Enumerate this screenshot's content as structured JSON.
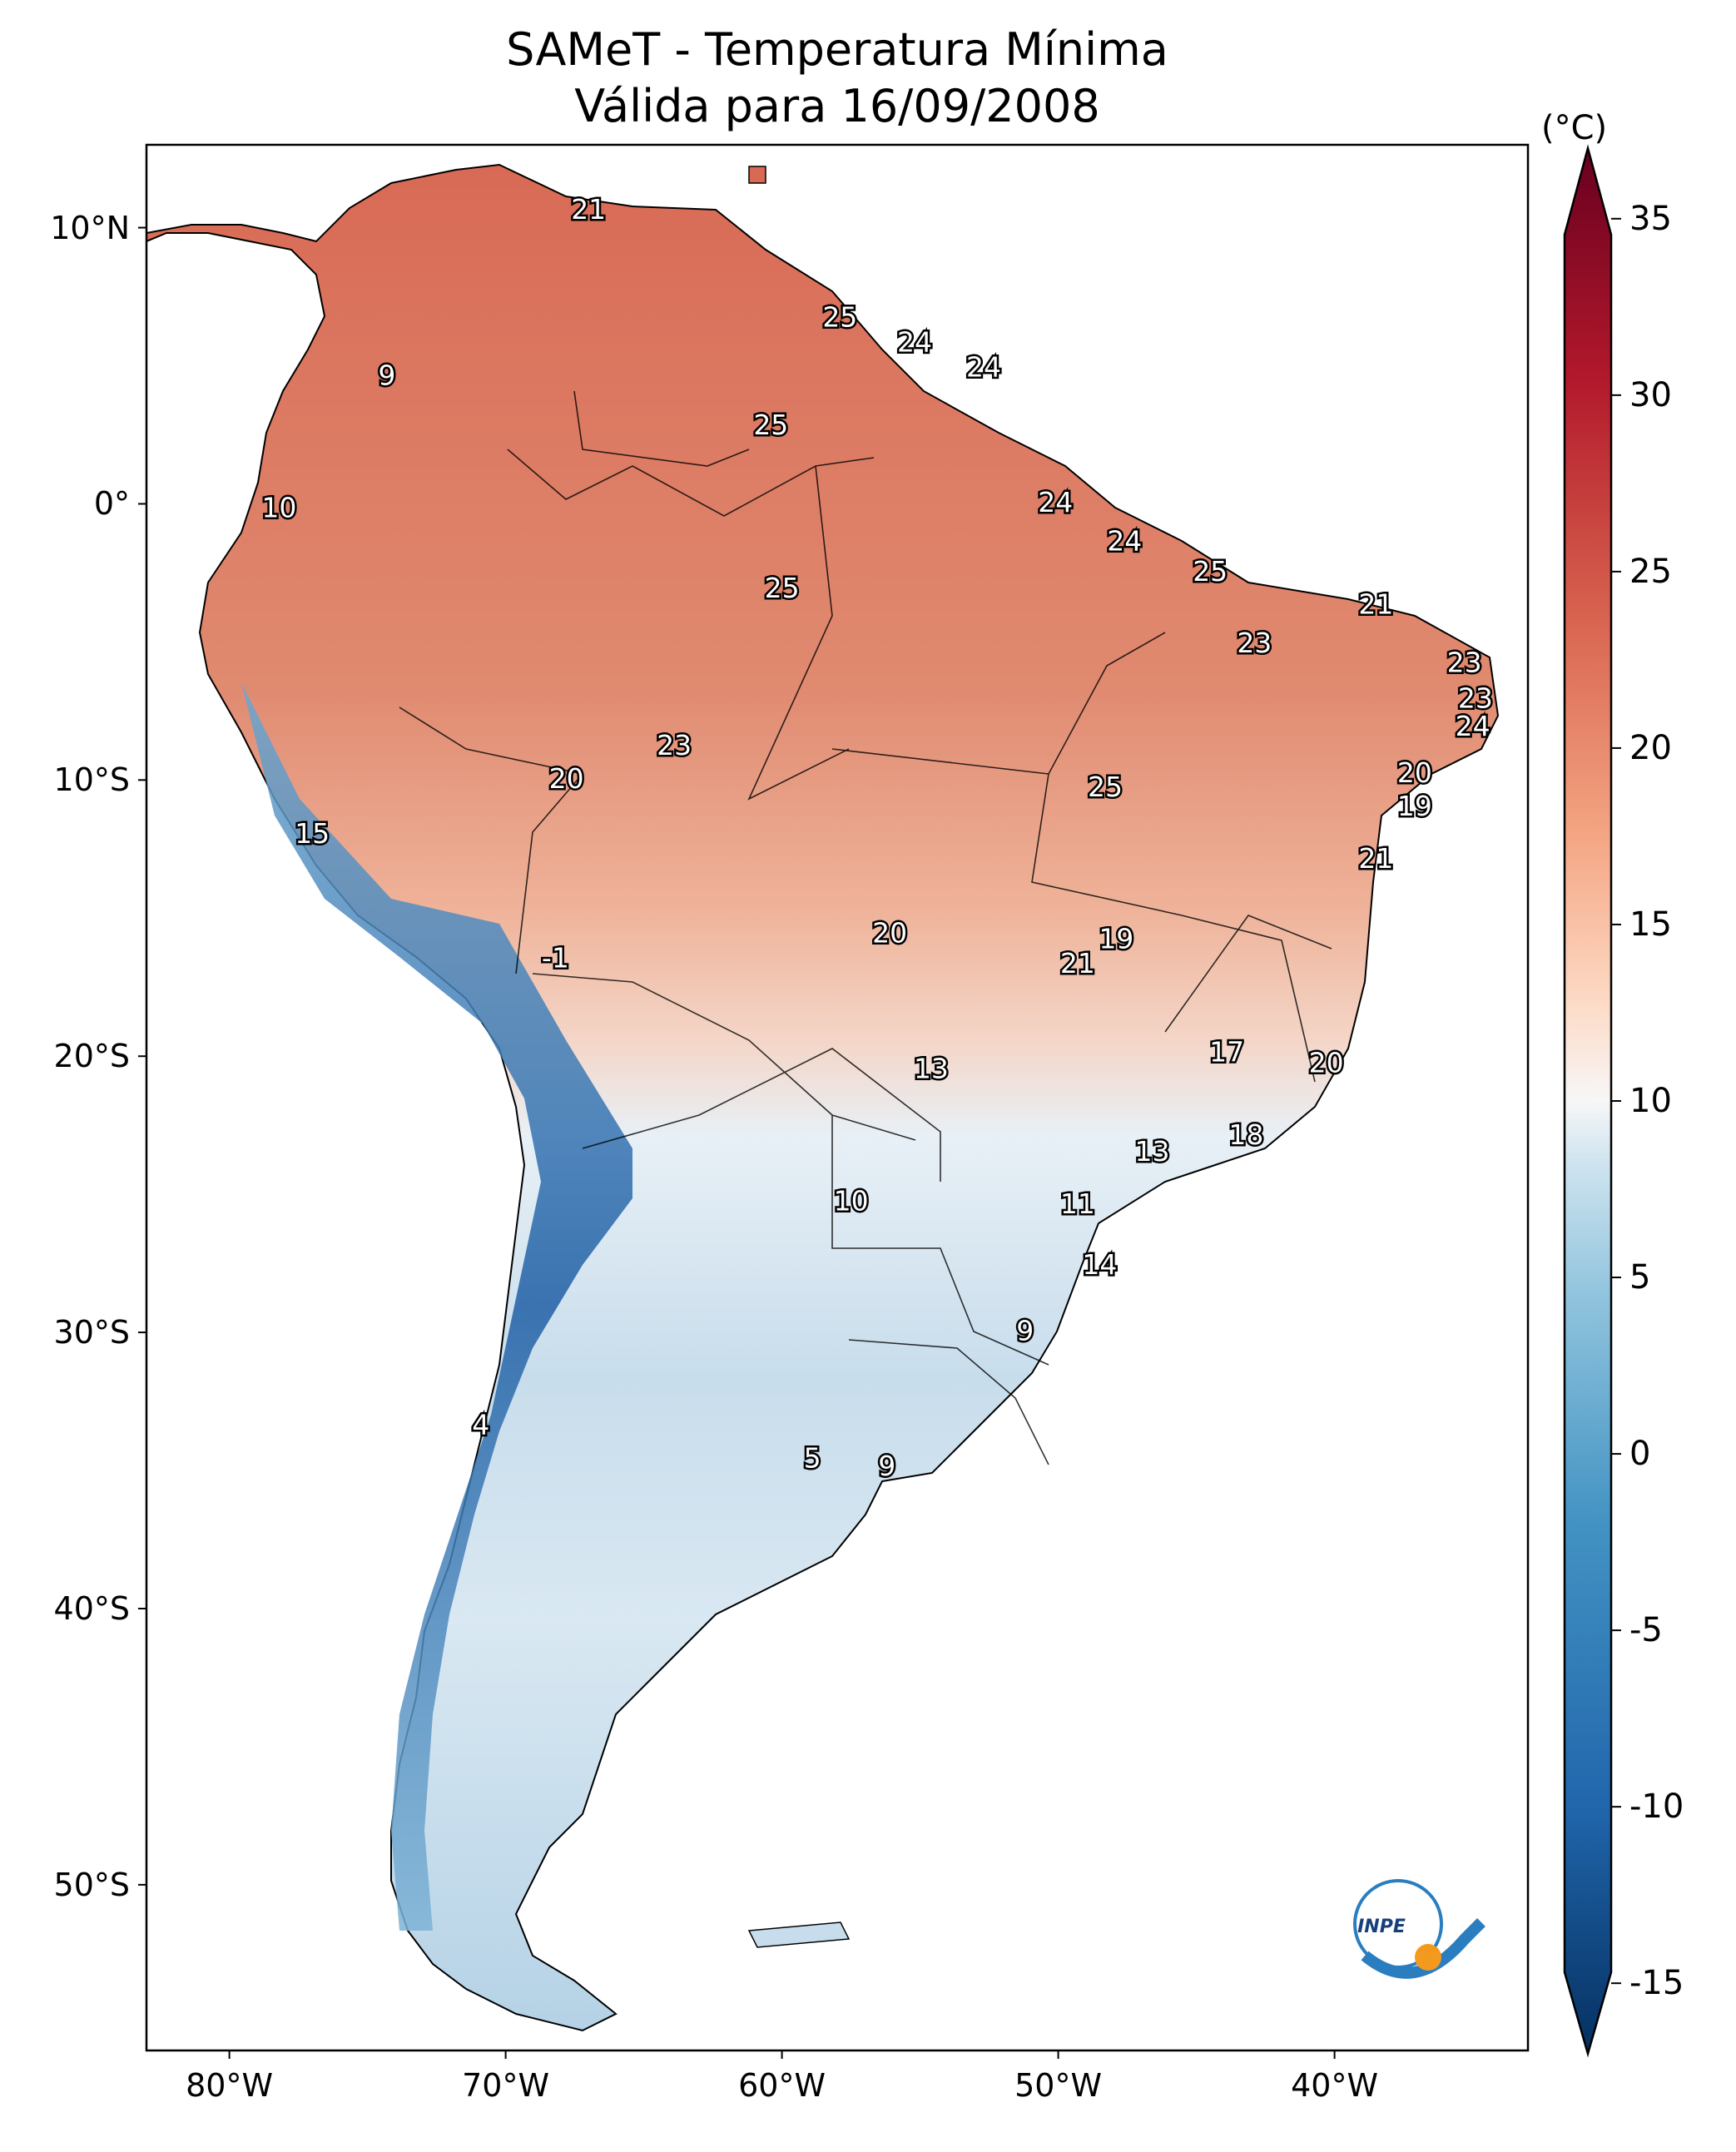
{
  "title": "SAMeT - Temperatura Mínima",
  "subtitle": "Válida para 16/09/2008",
  "colorbar": {
    "unit": "(°C)",
    "ticks": [
      "35",
      "30",
      "25",
      "20",
      "15",
      "10",
      "5",
      "0",
      "-5",
      "-10",
      "-15"
    ],
    "tick_values": [
      35,
      30,
      25,
      20,
      15,
      10,
      5,
      0,
      -5,
      -10,
      -15
    ],
    "range": [
      -17,
      37
    ],
    "colormap": "RdBu_r"
  },
  "axes": {
    "lat_ticks": [
      "10°N",
      "0°",
      "10°S",
      "20°S",
      "30°S",
      "40°S",
      "50°S"
    ],
    "lat_values": [
      10,
      0,
      -10,
      -20,
      -30,
      -40,
      -50
    ],
    "lon_ticks": [
      "80°W",
      "70°W",
      "60°W",
      "50°W",
      "40°W"
    ],
    "lon_values": [
      -80,
      -70,
      -60,
      -50,
      -40
    ],
    "lon_range": [
      -83,
      -33
    ],
    "lat_range": [
      -56,
      13
    ]
  },
  "stations": [
    {
      "label": "21",
      "lon": -67,
      "lat": 10.6
    },
    {
      "label": "9",
      "lon": -74.3,
      "lat": 4.6
    },
    {
      "label": "25",
      "lon": -57.9,
      "lat": 6.7
    },
    {
      "label": "24",
      "lon": -55.2,
      "lat": 5.8
    },
    {
      "label": "24",
      "lon": -52.7,
      "lat": 4.9
    },
    {
      "label": "25",
      "lon": -60.4,
      "lat": 2.8
    },
    {
      "label": "10",
      "lon": -78.2,
      "lat": -0.2
    },
    {
      "label": "24",
      "lon": -50.1,
      "lat": 0.0
    },
    {
      "label": "24",
      "lon": -47.6,
      "lat": -1.4
    },
    {
      "label": "25",
      "lon": -60.0,
      "lat": -3.1
    },
    {
      "label": "25",
      "lon": -44.5,
      "lat": -2.5
    },
    {
      "label": "21",
      "lon": -38.5,
      "lat": -3.7
    },
    {
      "label": "23",
      "lon": -42.9,
      "lat": -5.1
    },
    {
      "label": "23",
      "lon": -35.3,
      "lat": -5.8
    },
    {
      "label": "23",
      "lon": -34.9,
      "lat": -7.1
    },
    {
      "label": "24",
      "lon": -35.0,
      "lat": -8.1
    },
    {
      "label": "23",
      "lon": -63.9,
      "lat": -8.8
    },
    {
      "label": "20",
      "lon": -67.8,
      "lat": -10.0
    },
    {
      "label": "20",
      "lon": -37.1,
      "lat": -9.8
    },
    {
      "label": "25",
      "lon": -48.3,
      "lat": -10.3
    },
    {
      "label": "19",
      "lon": -37.1,
      "lat": -11.0
    },
    {
      "label": "15",
      "lon": -77.0,
      "lat": -12.0
    },
    {
      "label": "21",
      "lon": -38.5,
      "lat": -12.9
    },
    {
      "label": "20",
      "lon": -56.1,
      "lat": -15.6
    },
    {
      "label": "19",
      "lon": -47.9,
      "lat": -15.8
    },
    {
      "label": "21",
      "lon": -49.3,
      "lat": -16.7
    },
    {
      "label": "-1",
      "lon": -68.2,
      "lat": -16.5
    },
    {
      "label": "17",
      "lon": -43.9,
      "lat": -19.9
    },
    {
      "label": "20",
      "lon": -40.3,
      "lat": -20.3
    },
    {
      "label": "13",
      "lon": -54.6,
      "lat": -20.5
    },
    {
      "label": "18",
      "lon": -43.2,
      "lat": -22.9
    },
    {
      "label": "13",
      "lon": -46.6,
      "lat": -23.5
    },
    {
      "label": "10",
      "lon": -57.5,
      "lat": -25.3
    },
    {
      "label": "11",
      "lon": -49.3,
      "lat": -25.4
    },
    {
      "label": "14",
      "lon": -48.5,
      "lat": -27.6
    },
    {
      "label": "9",
      "lon": -51.2,
      "lat": -30.0
    },
    {
      "label": "4",
      "lon": -70.9,
      "lat": -33.4
    },
    {
      "label": "5",
      "lon": -58.9,
      "lat": -34.6
    },
    {
      "label": "9",
      "lon": -56.2,
      "lat": -34.9
    }
  ],
  "logo": {
    "text": "INPE"
  }
}
